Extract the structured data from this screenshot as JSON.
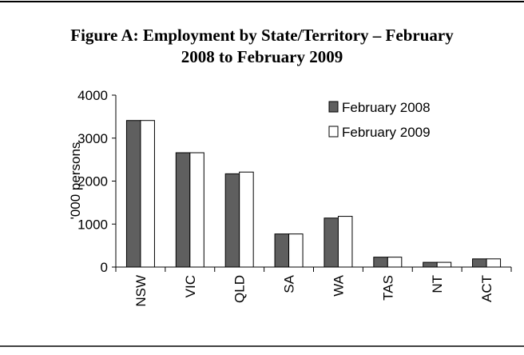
{
  "chart_data": {
    "type": "bar",
    "title": "Figure A:  Employment by State/Territory – February 2008 to February 2009",
    "title_lines": [
      "Figure A:  Employment by State/Territory – February",
      "2008 to February 2009"
    ],
    "y_label": "'000 persons",
    "categories": [
      "NSW",
      "VIC",
      "QLD",
      "SA",
      "WA",
      "TAS",
      "NT",
      "ACT"
    ],
    "series": [
      {
        "name": "February 2008",
        "color": "#5f5f5f",
        "values": [
          3410,
          2660,
          2170,
          770,
          1140,
          230,
          110,
          190
        ]
      },
      {
        "name": "February 2009",
        "color": "#ffffff",
        "values": [
          3410,
          2660,
          2210,
          770,
          1180,
          230,
          110,
          190
        ]
      }
    ],
    "ylim": [
      0,
      4000
    ],
    "yticks": [
      0,
      1000,
      2000,
      3000,
      4000
    ],
    "legend": "top-right",
    "grid": false
  }
}
